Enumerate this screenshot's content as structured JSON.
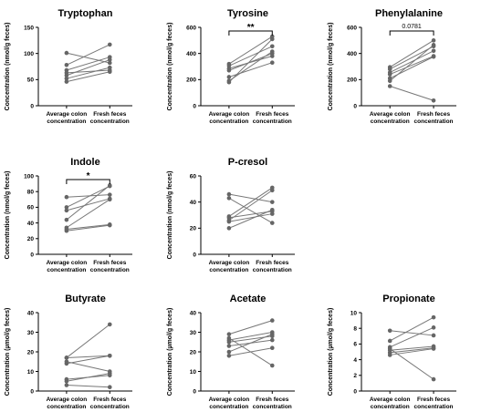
{
  "chart_data": [
    {
      "type": "line",
      "title": "Tryptophan",
      "ylabel": "Concentration (nmol/g feces)",
      "categories": [
        "Average colon\nconcentration",
        "Fresh feces\nconcentration"
      ],
      "ylim": [
        0,
        150
      ],
      "yticks": [
        0,
        50,
        100,
        150
      ],
      "series": [
        {
          "values": [
            101,
            82
          ]
        },
        {
          "values": [
            78,
            117
          ]
        },
        {
          "values": [
            68,
            93
          ]
        },
        {
          "values": [
            63,
            68
          ]
        },
        {
          "values": [
            58,
            88
          ]
        },
        {
          "values": [
            52,
            73
          ]
        },
        {
          "values": [
            46,
            65
          ]
        }
      ],
      "annotation": null
    },
    {
      "type": "line",
      "title": "Tyrosine",
      "ylabel": "Concentration (nmol/g feces)",
      "categories": [
        "Average colon\nconcentration",
        "Fresh feces\nconcentration"
      ],
      "ylim": [
        0,
        600
      ],
      "yticks": [
        0,
        200,
        400,
        600
      ],
      "series": [
        {
          "values": [
            320,
            530
          ]
        },
        {
          "values": [
            305,
            455
          ]
        },
        {
          "values": [
            285,
            380
          ]
        },
        {
          "values": [
            270,
            400
          ]
        },
        {
          "values": [
            220,
            330
          ]
        },
        {
          "values": [
            190,
            415
          ]
        },
        {
          "values": [
            180,
            510
          ]
        }
      ],
      "annotation": "**"
    },
    {
      "type": "line",
      "title": "Phenylalanine",
      "ylabel": "Concentration (nmol/g feces)",
      "categories": [
        "Average colon\nconcentration",
        "Fresh feces\nconcentration"
      ],
      "ylim": [
        0,
        600
      ],
      "yticks": [
        0,
        200,
        400,
        600
      ],
      "series": [
        {
          "values": [
            295,
            500
          ]
        },
        {
          "values": [
            280,
            455
          ]
        },
        {
          "values": [
            255,
            420
          ]
        },
        {
          "values": [
            240,
            380
          ]
        },
        {
          "values": [
            210,
            375
          ]
        },
        {
          "values": [
            190,
            465
          ]
        },
        {
          "values": [
            150,
            40
          ]
        }
      ],
      "annotation": "0.0781"
    },
    {
      "type": "line",
      "title": "Indole",
      "ylabel": "Concentration (nmol/g feces)",
      "categories": [
        "Average colon\nconcentration",
        "Fresh feces\nconcentration"
      ],
      "ylim": [
        0,
        100
      ],
      "yticks": [
        0,
        20,
        40,
        60,
        80,
        100
      ],
      "series": [
        {
          "values": [
            73,
            76
          ]
        },
        {
          "values": [
            60,
            87
          ]
        },
        {
          "values": [
            56,
            71
          ]
        },
        {
          "values": [
            44,
            88
          ]
        },
        {
          "values": [
            34,
            70
          ]
        },
        {
          "values": [
            32,
            38
          ]
        },
        {
          "values": [
            30,
            37
          ]
        }
      ],
      "annotation": "*"
    },
    {
      "type": "line",
      "title": "P-cresol",
      "ylabel": "Concentration (nmol/g feces)",
      "categories": [
        "Average colon\nconcentration",
        "Fresh feces\nconcentration"
      ],
      "ylim": [
        0,
        60
      ],
      "yticks": [
        0,
        20,
        40,
        60
      ],
      "series": [
        {
          "values": [
            46,
            40
          ]
        },
        {
          "values": [
            43,
            24
          ]
        },
        {
          "values": [
            29,
            51
          ]
        },
        {
          "values": [
            28,
            33
          ]
        },
        {
          "values": [
            26,
            49
          ]
        },
        {
          "values": [
            25,
            31
          ]
        },
        {
          "values": [
            20,
            34
          ]
        }
      ],
      "annotation": null
    },
    {
      "type": "line",
      "title": "Butyrate",
      "ylabel": "Concentration (µmol/g feces)",
      "categories": [
        "Average colon\nconcentration",
        "Fresh feces\nconcentration"
      ],
      "ylim": [
        0,
        40
      ],
      "yticks": [
        0,
        10,
        20,
        30,
        40
      ],
      "series": [
        {
          "values": [
            17,
            34
          ]
        },
        {
          "values": [
            17,
            18
          ]
        },
        {
          "values": [
            15,
            10
          ]
        },
        {
          "values": [
            14,
            18
          ]
        },
        {
          "values": [
            6,
            8
          ]
        },
        {
          "values": [
            5,
            9
          ]
        },
        {
          "values": [
            3,
            2
          ]
        }
      ],
      "annotation": null
    },
    {
      "type": "line",
      "title": "Acetate",
      "ylabel": "Concentration (µmol/g feces)",
      "categories": [
        "Average colon\nconcentration",
        "Fresh feces\nconcentration"
      ],
      "ylim": [
        0,
        40
      ],
      "yticks": [
        0,
        10,
        20,
        30,
        40
      ],
      "series": [
        {
          "values": [
            29,
            36
          ]
        },
        {
          "values": [
            27,
            13
          ]
        },
        {
          "values": [
            26,
            30
          ]
        },
        {
          "values": [
            25,
            28
          ]
        },
        {
          "values": [
            23,
            26
          ]
        },
        {
          "values": [
            20,
            29
          ]
        },
        {
          "values": [
            18,
            22
          ]
        }
      ],
      "annotation": null
    },
    {
      "type": "line",
      "title": "Propionate",
      "ylabel": "Concentration (µmol/g feces)",
      "categories": [
        "Average colon\nconcentration",
        "Fresh feces\nconcentration"
      ],
      "ylim": [
        0,
        10
      ],
      "yticks": [
        0,
        2,
        4,
        6,
        8,
        10
      ],
      "series": [
        {
          "values": [
            7.7,
            7.1
          ]
        },
        {
          "values": [
            6.4,
            9.4
          ]
        },
        {
          "values": [
            5.6,
            8.1
          ]
        },
        {
          "values": [
            5.4,
            1.5
          ]
        },
        {
          "values": [
            5.2,
            5.7
          ]
        },
        {
          "values": [
            4.9,
            5.5
          ]
        },
        {
          "values": [
            4.6,
            5.4
          ]
        }
      ],
      "annotation": null
    }
  ]
}
